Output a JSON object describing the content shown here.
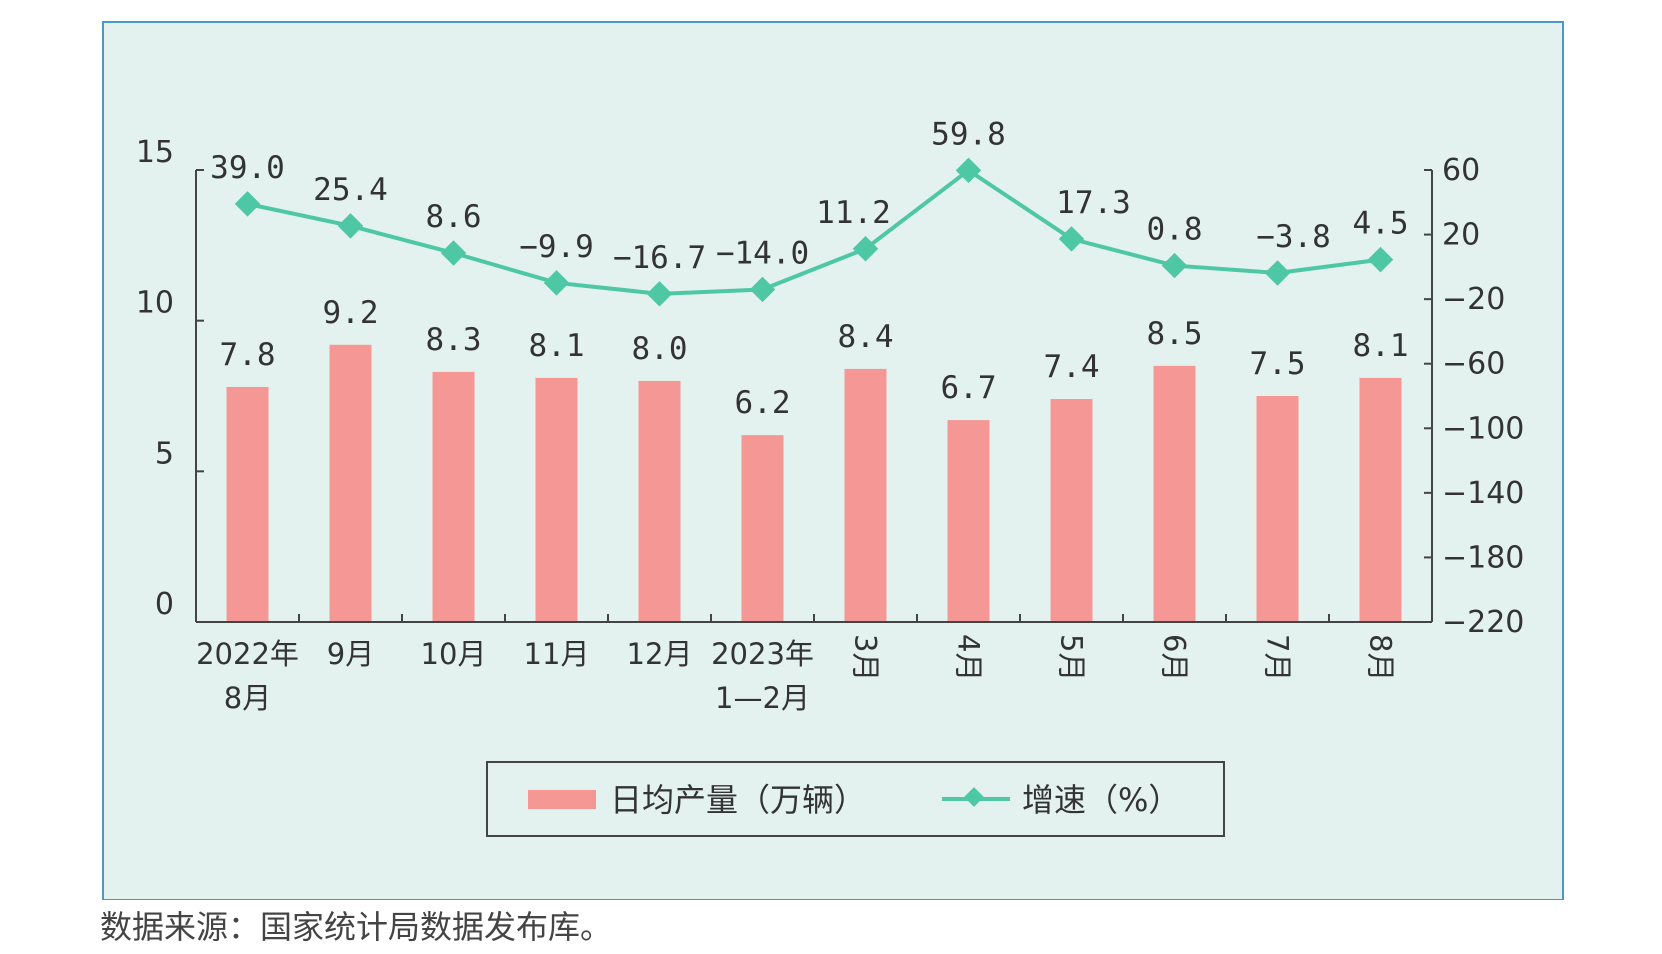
{
  "colors": {
    "panel_bg": "#e3f2ee",
    "panel_border": "#4a9bc4",
    "bar": "#f49795",
    "line": "#4ec7a5"
  },
  "source_note": "数据来源：国家统计局数据发布库。",
  "chart_data": {
    "type": "bar+line",
    "title": "",
    "categories": [
      [
        "2022年",
        "8月"
      ],
      [
        "9月"
      ],
      [
        "10月"
      ],
      [
        "11月"
      ],
      [
        "12月"
      ],
      [
        "2023年",
        "1—2月"
      ],
      [
        "3月"
      ],
      [
        "4月"
      ],
      [
        "5月"
      ],
      [
        "6月"
      ],
      [
        "7月"
      ],
      [
        "8月"
      ]
    ],
    "category_label_rotated": [
      false,
      false,
      false,
      false,
      false,
      false,
      true,
      true,
      true,
      true,
      true,
      true
    ],
    "series": [
      {
        "name": "日均产量（万辆）",
        "type": "bar",
        "axis": "left",
        "values": [
          7.8,
          9.2,
          8.3,
          8.1,
          8.0,
          6.2,
          8.4,
          6.7,
          7.4,
          8.5,
          7.5,
          8.1
        ],
        "labels": [
          "7.8",
          "9.2",
          "8.3",
          "8.1",
          "8.0",
          "6.2",
          "8.4",
          "6.7",
          "7.4",
          "8.5",
          "7.5",
          "8.1"
        ]
      },
      {
        "name": "增速（%）",
        "type": "line",
        "axis": "right",
        "values": [
          39.0,
          25.4,
          8.6,
          -9.9,
          -16.7,
          -14.0,
          11.2,
          59.8,
          17.3,
          0.8,
          -3.8,
          4.5
        ],
        "labels": [
          "39.0",
          "25.4",
          "8.6",
          "−9.9",
          "−16.7",
          "−14.0",
          "11.2",
          "59.8",
          "17.3",
          "0.8",
          "−3.8",
          "4.5"
        ]
      }
    ],
    "y_left": {
      "ylim": [
        0,
        15
      ],
      "ticks": [
        0,
        5,
        10,
        15
      ],
      "tick_labels": [
        "0",
        "5",
        "10",
        "15"
      ]
    },
    "y_right": {
      "ylim": [
        -220,
        60
      ],
      "ticks": [
        60,
        20,
        -20,
        -60,
        -100,
        -140,
        -180,
        -220
      ],
      "tick_labels": [
        "60",
        "20",
        "−20",
        "−60",
        "−100",
        "−140",
        "−180",
        "−220"
      ]
    },
    "legend_position": "bottom-center",
    "grid": false
  }
}
